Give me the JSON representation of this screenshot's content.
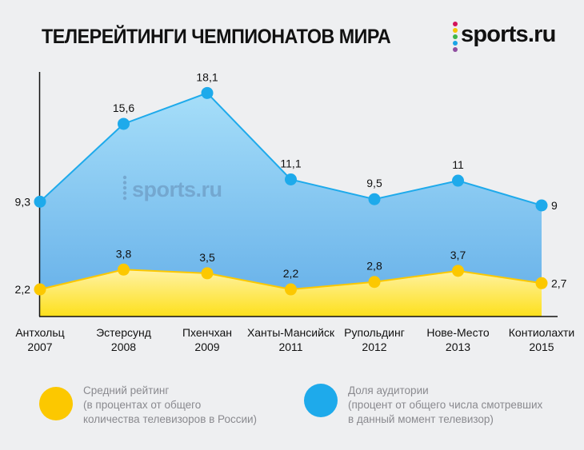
{
  "header": {
    "title": "ТЕЛЕРЕЙТИНГИ ЧЕМПИОНАТОВ МИРА",
    "logo_text": "sports.ru",
    "logo_dot_colors": [
      "#d3145a",
      "#f5c400",
      "#3fb549",
      "#1aa5e6",
      "#8f4ea0"
    ]
  },
  "watermark": {
    "text": "sports.ru"
  },
  "colors": {
    "blue": "#1eaaeb",
    "blue_fill_top": "#a6def9",
    "blue_fill_bottom": "#63aee8",
    "yellow": "#fcc800",
    "yellow_fill_top": "#fff2a4",
    "yellow_fill_bottom": "#fde01b",
    "axis": "#111111"
  },
  "chart_data": {
    "type": "area",
    "title": "ТЕЛЕРЕЙТИНГИ ЧЕМПИОНАТОВ МИРА",
    "xlabel": "",
    "ylabel": "",
    "ylim": [
      0,
      19.5
    ],
    "grid": false,
    "legend_position": "bottom",
    "categories": [
      {
        "place": "Антхольц",
        "year": "2007"
      },
      {
        "place": "Эстерсунд",
        "year": "2008"
      },
      {
        "place": "Пхенчхан",
        "year": "2009"
      },
      {
        "place": "Ханты-Мансийск",
        "year": "2011"
      },
      {
        "place": "Рупольдинг",
        "year": "2012"
      },
      {
        "place": "Нове-Место",
        "year": "2013"
      },
      {
        "place": "Контиолахти",
        "year": "2015"
      }
    ],
    "series": [
      {
        "name": "Доля аудитории",
        "key": "share",
        "values": [
          9.3,
          15.6,
          18.1,
          11.1,
          9.5,
          11,
          9
        ],
        "labels": [
          "9,3",
          "15,6",
          "18,1",
          "11,1",
          "9,5",
          "11",
          "9"
        ]
      },
      {
        "name": "Средний рейтинг",
        "key": "rating",
        "values": [
          2.2,
          3.8,
          3.5,
          2.2,
          2.8,
          3.7,
          2.7
        ],
        "labels": [
          "2,2",
          "3,8",
          "3,5",
          "2,2",
          "2,8",
          "3,7",
          "2,7"
        ]
      }
    ]
  },
  "legend": [
    {
      "color": "#fcc800",
      "lines": [
        "Средний рейтинг",
        "(в процентах от общего",
        "количества телевизоров в России)"
      ]
    },
    {
      "color": "#1eaaeb",
      "lines": [
        "Доля аудитории",
        "(процент от общего числа смотревших",
        "в данный момент телевизор)"
      ]
    }
  ]
}
